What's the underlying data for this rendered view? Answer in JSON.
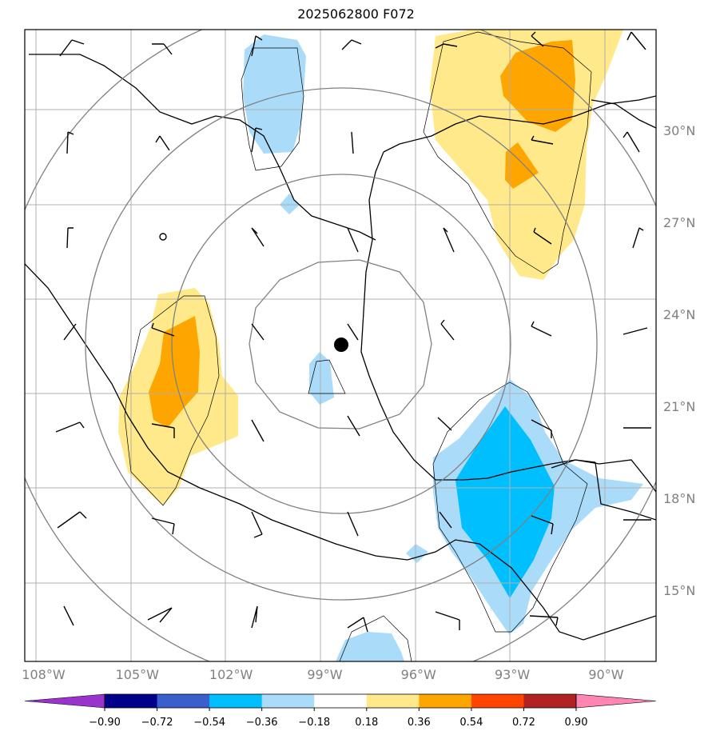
{
  "title": "2025062800 F072",
  "colors": {
    "land_outline": "#000000",
    "grid": "#b0b0b0",
    "range_rings": "#808080",
    "neg_light": "#aadcfa",
    "neg_mid": "#00bfff",
    "pos_light": "#ffe98a",
    "pos_mid": "#ffa500"
  },
  "map_extent": {
    "lon_min": -108.6,
    "lon_max": -88.4,
    "lat_min": 12.7,
    "lat_max": 33.3
  },
  "center_marker": {
    "lon": -98.5,
    "lat": 22.5,
    "icon": "black-dot-icon"
  },
  "lat_ticks": [
    {
      "value": 30,
      "label": "30°N"
    },
    {
      "value": 27,
      "label": "27°N"
    },
    {
      "value": 24,
      "label": "24°N"
    },
    {
      "value": 21,
      "label": "21°N"
    },
    {
      "value": 18,
      "label": "18°N"
    },
    {
      "value": 15,
      "label": "15°N"
    }
  ],
  "lon_ticks": [
    {
      "value": -108,
      "label": "108°W"
    },
    {
      "value": -105,
      "label": "105°W"
    },
    {
      "value": -102,
      "label": "102°W"
    },
    {
      "value": -99,
      "label": "99°W"
    },
    {
      "value": -96,
      "label": "96°W"
    },
    {
      "value": -93,
      "label": "93°W"
    },
    {
      "value": -90,
      "label": "90°W"
    }
  ],
  "colorbar": {
    "colors": [
      "#9933cc",
      "#00008b",
      "#3a5fcd",
      "#00bfff",
      "#aadcfa",
      "#ffffff",
      "#ffe98a",
      "#ffa500",
      "#ff4500",
      "#b22222",
      "#ff85b3"
    ],
    "tick_labels": [
      "−0.90",
      "−0.72",
      "−0.54",
      "−0.36",
      "−0.18",
      "0.18",
      "0.36",
      "0.54",
      "0.72",
      "0.90"
    ]
  }
}
